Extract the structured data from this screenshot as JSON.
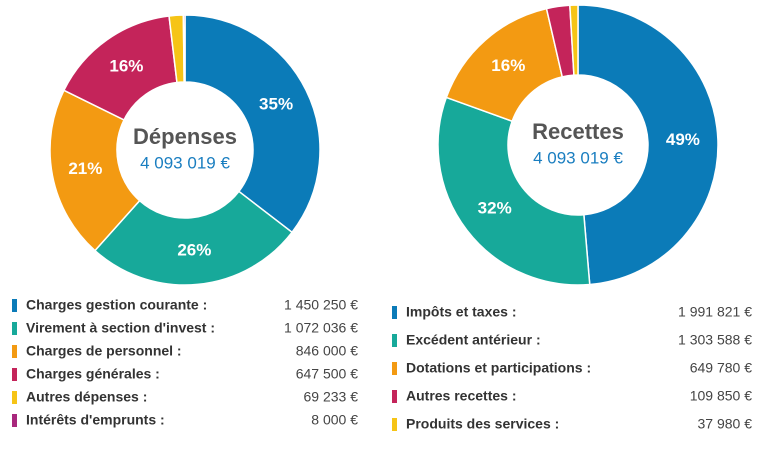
{
  "chart_data": [
    {
      "type": "donut",
      "title": "Dépenses",
      "total": "4 093 019 €",
      "categories": [
        "Charges gestion courante :",
        "Virement à section d'invest :",
        "Charges de personnel :",
        "Charges générales :",
        "Autres dépenses :",
        "Intérêts d'emprunts :"
      ],
      "values": [
        1450250,
        1072036,
        846000,
        647500,
        69233,
        8000
      ],
      "value_labels": [
        "1 450 250 €",
        "1 072 036 €",
        "846 000 €",
        "647 500 €",
        "69 233 €",
        "8 000 €"
      ],
      "slice_labels": [
        "35%",
        "26%",
        "21%",
        "16%",
        null,
        null
      ],
      "colors": [
        "#0b7bb8",
        "#17a99a",
        "#f39a12",
        "#c4245a",
        "#f6c416",
        "#a8287c"
      ]
    },
    {
      "type": "donut",
      "title": "Recettes",
      "total": "4 093 019 €",
      "categories": [
        "Impôts et taxes :",
        "Excédent antérieur :",
        "Dotations et participations :",
        "Autres recettes :",
        "Produits des services :"
      ],
      "values": [
        1991821,
        1303588,
        649780,
        109850,
        37980
      ],
      "value_labels": [
        "1 991 821 €",
        "1 303 588 €",
        "649 780 €",
        "109 850 €",
        "37 980 €"
      ],
      "slice_labels": [
        "49%",
        "32%",
        "16%",
        null,
        null
      ],
      "colors": [
        "#0b7bb8",
        "#17a99a",
        "#f39a12",
        "#c4245a",
        "#f6c416"
      ]
    }
  ]
}
